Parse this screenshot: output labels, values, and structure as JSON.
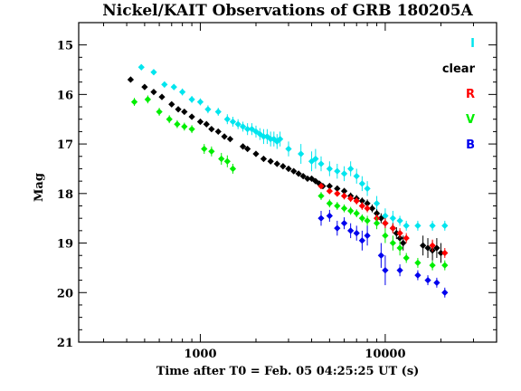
{
  "chart_data": {
    "type": "scatter",
    "title": "Nickel/KAIT Observations of GRB 180205A",
    "xlabel": "Time after T0 = Feb. 05 04:25:25 UT (s)",
    "ylabel": "Mag",
    "x_scale": "log",
    "xlim": [
      220,
      40000
    ],
    "ylim": [
      21,
      14.55
    ],
    "y_inverted": true,
    "x_ticks": [
      {
        "value": 1000,
        "label": "1000"
      },
      {
        "value": 10000,
        "label": "10000"
      }
    ],
    "y_ticks": [
      {
        "value": 15,
        "label": "15"
      },
      {
        "value": 16,
        "label": "16"
      },
      {
        "value": 17,
        "label": "17"
      },
      {
        "value": 18,
        "label": "18"
      },
      {
        "value": 19,
        "label": "19"
      },
      {
        "value": 20,
        "label": "20"
      },
      {
        "value": 21,
        "label": "21"
      }
    ],
    "legend_position": "top-right",
    "series": [
      {
        "name": "I",
        "color": "#00e5ee",
        "x": [
          480,
          560,
          640,
          720,
          800,
          900,
          1000,
          1100,
          1250,
          1400,
          1500,
          1600,
          1700,
          1800,
          1900,
          2000,
          2100,
          2200,
          2300,
          2400,
          2500,
          2600,
          2700,
          3000,
          3500,
          4000,
          4200,
          4500,
          5000,
          5500,
          6000,
          6500,
          7000,
          7500,
          8000,
          9000,
          10000,
          11000,
          12000,
          13000,
          15000,
          18000,
          21000
        ],
        "y": [
          15.45,
          15.55,
          15.8,
          15.85,
          15.95,
          16.1,
          16.15,
          16.3,
          16.35,
          16.5,
          16.55,
          16.6,
          16.65,
          16.7,
          16.7,
          16.75,
          16.8,
          16.85,
          16.85,
          16.9,
          16.9,
          16.95,
          16.9,
          17.1,
          17.2,
          17.35,
          17.3,
          17.4,
          17.5,
          17.55,
          17.6,
          17.5,
          17.65,
          17.8,
          17.9,
          18.2,
          18.45,
          18.5,
          18.55,
          18.65,
          18.65,
          18.65,
          18.65
        ],
        "err": [
          0.06,
          0.06,
          0.06,
          0.06,
          0.07,
          0.07,
          0.07,
          0.08,
          0.08,
          0.1,
          0.1,
          0.1,
          0.1,
          0.12,
          0.12,
          0.12,
          0.12,
          0.15,
          0.15,
          0.15,
          0.15,
          0.15,
          0.15,
          0.15,
          0.2,
          0.2,
          0.2,
          0.15,
          0.15,
          0.15,
          0.15,
          0.15,
          0.15,
          0.15,
          0.15,
          0.15,
          0.15,
          0.15,
          0.1,
          0.1,
          0.1,
          0.1,
          0.1
        ]
      },
      {
        "name": "clear",
        "color": "#000000",
        "x": [
          420,
          500,
          560,
          620,
          700,
          760,
          820,
          900,
          1000,
          1080,
          1150,
          1250,
          1350,
          1450,
          1700,
          1800,
          2000,
          2200,
          2400,
          2600,
          2800,
          3000,
          3200,
          3400,
          3600,
          3800,
          4000,
          4200,
          4400,
          4600,
          5000,
          5500,
          6000,
          6500,
          7000,
          7500,
          8000,
          8500,
          9000,
          9500,
          10000,
          11000,
          11500,
          12000,
          12500,
          16000,
          17000,
          18000,
          19000,
          20000
        ],
        "y": [
          15.7,
          15.85,
          15.95,
          16.05,
          16.2,
          16.3,
          16.35,
          16.45,
          16.55,
          16.6,
          16.7,
          16.75,
          16.85,
          16.9,
          17.05,
          17.1,
          17.2,
          17.3,
          17.35,
          17.4,
          17.45,
          17.5,
          17.55,
          17.6,
          17.65,
          17.7,
          17.7,
          17.75,
          17.8,
          17.85,
          17.85,
          17.9,
          17.95,
          18.05,
          18.1,
          18.15,
          18.2,
          18.3,
          18.4,
          18.5,
          18.6,
          18.7,
          18.8,
          18.9,
          19.0,
          19.05,
          19.1,
          19.15,
          19.1,
          19.2
        ],
        "err": [
          0.03,
          0.03,
          0.03,
          0.03,
          0.03,
          0.03,
          0.03,
          0.03,
          0.03,
          0.03,
          0.03,
          0.03,
          0.03,
          0.03,
          0.04,
          0.04,
          0.04,
          0.04,
          0.04,
          0.04,
          0.05,
          0.05,
          0.05,
          0.05,
          0.05,
          0.05,
          0.05,
          0.05,
          0.05,
          0.05,
          0.06,
          0.06,
          0.06,
          0.07,
          0.07,
          0.07,
          0.08,
          0.08,
          0.08,
          0.1,
          0.1,
          0.1,
          0.12,
          0.12,
          0.15,
          0.2,
          0.2,
          0.2,
          0.2,
          0.2
        ]
      },
      {
        "name": "R",
        "color": "#ff0000",
        "x": [
          4500,
          5000,
          5500,
          6000,
          6500,
          7000,
          7500,
          8000,
          9000,
          10000,
          11000,
          12000,
          13000,
          18000,
          21000
        ],
        "y": [
          17.85,
          17.95,
          18.0,
          18.05,
          18.1,
          18.15,
          18.25,
          18.3,
          18.5,
          18.6,
          18.7,
          18.8,
          18.9,
          19.05,
          19.2
        ],
        "err": [
          0.06,
          0.06,
          0.06,
          0.07,
          0.07,
          0.07,
          0.08,
          0.08,
          0.08,
          0.1,
          0.1,
          0.1,
          0.1,
          0.12,
          0.1
        ]
      },
      {
        "name": "V",
        "color": "#00ee00",
        "x": [
          440,
          520,
          600,
          680,
          750,
          820,
          900,
          1050,
          1150,
          1300,
          1400,
          1500,
          4500,
          5000,
          5500,
          6000,
          6500,
          7000,
          7500,
          8000,
          9000,
          10000,
          11000,
          12000,
          13000,
          15000,
          18000,
          21000
        ],
        "y": [
          16.15,
          16.1,
          16.35,
          16.5,
          16.6,
          16.65,
          16.7,
          17.1,
          17.15,
          17.3,
          17.35,
          17.5,
          18.05,
          18.2,
          18.25,
          18.3,
          18.35,
          18.4,
          18.5,
          18.55,
          18.6,
          18.85,
          19.0,
          19.1,
          19.3,
          19.4,
          19.45,
          19.45
        ],
        "err": [
          0.08,
          0.08,
          0.08,
          0.08,
          0.08,
          0.08,
          0.08,
          0.1,
          0.1,
          0.12,
          0.12,
          0.1,
          0.08,
          0.08,
          0.08,
          0.08,
          0.08,
          0.08,
          0.08,
          0.1,
          0.12,
          0.15,
          0.15,
          0.15,
          0.1,
          0.1,
          0.1,
          0.1
        ]
      },
      {
        "name": "B",
        "color": "#0000ee",
        "x": [
          4500,
          5000,
          5500,
          6000,
          6500,
          7000,
          7500,
          8000,
          9500,
          10000,
          12000,
          15000,
          17000,
          19000,
          21000
        ],
        "y": [
          18.5,
          18.45,
          18.7,
          18.6,
          18.75,
          18.8,
          18.95,
          18.85,
          19.25,
          19.55,
          19.55,
          19.65,
          19.75,
          19.8,
          20.0
        ],
        "err": [
          0.15,
          0.12,
          0.15,
          0.12,
          0.15,
          0.15,
          0.2,
          0.2,
          0.25,
          0.3,
          0.12,
          0.1,
          0.1,
          0.1,
          0.1
        ]
      }
    ]
  }
}
